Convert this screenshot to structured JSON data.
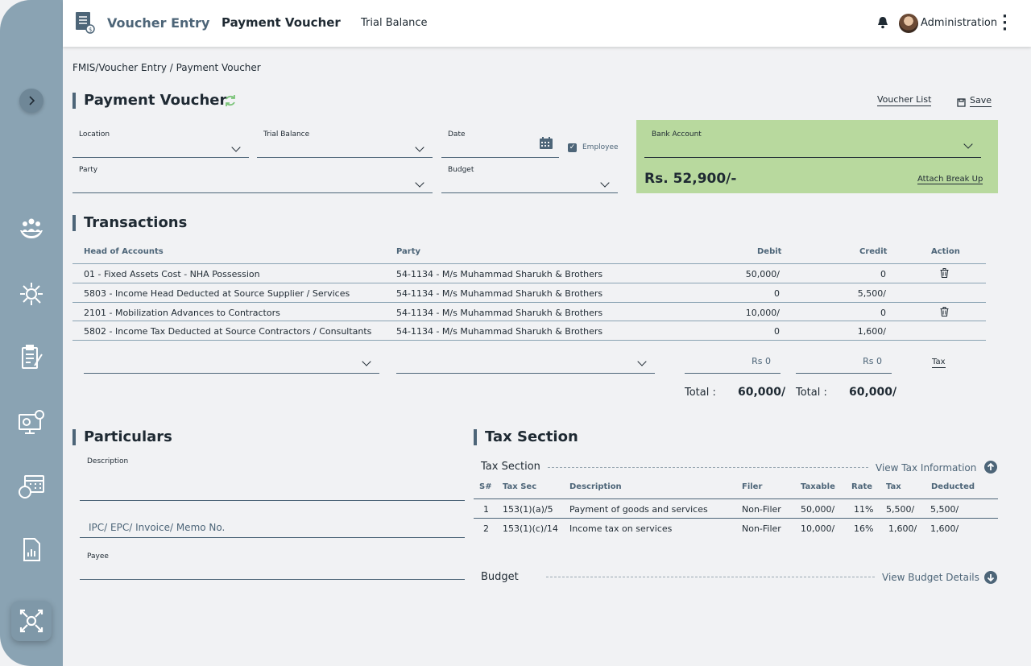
{
  "header": {
    "app_title": "Voucher Entry",
    "tabs": [
      {
        "label": "Payment Voucher",
        "active": true
      },
      {
        "label": "Trial Balance",
        "active": false
      }
    ],
    "user_name": "Administration"
  },
  "breadcrumb": "FMIS/Voucher Entry / Payment Voucher",
  "page_title": "Payment Voucher",
  "actions": {
    "voucher_list": "Voucher List",
    "save": "Save"
  },
  "form": {
    "location_label": "Location",
    "trial_balance_label": "Trial Balance",
    "date_label": "Date",
    "employee_label": "Employee",
    "employee_checked": true,
    "party_label": "Party",
    "budget_label": "Budget"
  },
  "bank": {
    "label": "Bank Account",
    "amount": "Rs. 52,900/-",
    "attach_link": "Attach Break Up",
    "background_color": "#b8d99e"
  },
  "transactions": {
    "title": "Transactions",
    "columns": {
      "head_of_accounts": "Head of Accounts",
      "party": "Party",
      "debit": "Debit",
      "credit": "Credit",
      "action": "Action"
    },
    "rows": [
      {
        "head": "01 - Fixed Assets Cost - NHA Possession",
        "party": "54-1134 - M/s Muhammad Sharukh & Brothers",
        "debit": "50,000/",
        "credit": "0",
        "deletable": true
      },
      {
        "head": "5803 - Income Head Deducted at Source Supplier / Services",
        "party": "54-1134 - M/s Muhammad Sharukh & Brothers",
        "debit": "0",
        "credit": "5,500/",
        "deletable": false
      },
      {
        "head": "2101 - Mobilization Advances to Contractors",
        "party": "54-1134 - M/s Muhammad Sharukh & Brothers",
        "debit": "10,000/",
        "credit": "0",
        "deletable": true
      },
      {
        "head": "5802 - Income Tax Deducted at Source Contractors / Consultants",
        "party": "54-1134 - M/s Muhammad Sharukh & Brothers",
        "debit": "0",
        "credit": "1,600/",
        "deletable": false
      }
    ],
    "entry": {
      "debit_value": "Rs 0",
      "credit_value": "Rs 0",
      "tax_button": "Tax"
    },
    "totals": {
      "label": "Total :",
      "debit": "60,000/",
      "credit": "60,000/"
    }
  },
  "particulars": {
    "title": "Particulars",
    "description_label": "Description",
    "invoice_placeholder": "IPC/ EPC/ Invoice/ Memo No.",
    "payee_label": "Payee"
  },
  "tax": {
    "title": "Tax Section",
    "subtitle": "Tax Section",
    "view_link": "View Tax Information",
    "columns": {
      "sn": "S#",
      "tax_sec": "Tax Sec",
      "description": "Description",
      "filer": "Filer",
      "taxable": "Taxable",
      "rate": "Rate",
      "tax": "Tax",
      "deducted": "Deducted"
    },
    "rows": [
      {
        "sn": "1",
        "tax_sec": "153(1)(a)/5",
        "description": "Payment of goods and services",
        "filer": "Non-Filer",
        "taxable": "50,000/",
        "rate": "11%",
        "tax": "5,500/",
        "deducted": "5,500/"
      },
      {
        "sn": "2",
        "tax_sec": "153(1)(c)/14",
        "description": "Income tax on services",
        "filer": "Non-Filer",
        "taxable": "10,000/",
        "rate": "16%",
        "tax": "1,600/",
        "deducted": "1,600/"
      }
    ],
    "budget_title": "Budget",
    "budget_link": "View Budget Details"
  },
  "sidebar": {
    "icons": [
      "people-care-icon",
      "network-search-icon",
      "clipboard-edit-icon",
      "monitor-money-icon",
      "calendar-money-icon",
      "document-chart-icon",
      "money-exchange-icon"
    ]
  }
}
